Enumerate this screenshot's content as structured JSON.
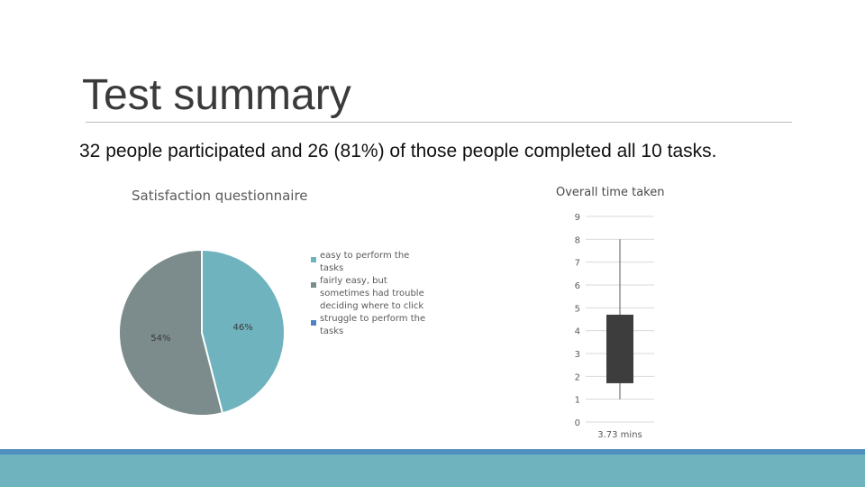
{
  "slide": {
    "title": "Test summary",
    "summary": "32 people participated and 26 (81%) of those people completed all 10 tasks."
  },
  "colors": {
    "easy": "#6fb3bf",
    "fairly_easy": "#7c8b8c",
    "struggle": "#4f84c4",
    "box": "#3d3d3d",
    "footer_band": "#6fb3bf",
    "footer_line": "#4f8fbf"
  },
  "chart_data": [
    {
      "type": "pie",
      "title": "Satisfaction questionnaire",
      "categories": [
        "easy to perform the tasks",
        "fairly easy, but sometimes had trouble deciding where to click",
        "struggle to perform the tasks"
      ],
      "values": [
        46,
        54,
        0
      ],
      "labels": [
        "46%",
        "54%",
        ""
      ],
      "legend_position": "right"
    },
    {
      "type": "box",
      "title": "Overall time taken",
      "categories": [
        "3.73 mins"
      ],
      "ylim": [
        0,
        9
      ],
      "yticks": [
        "0",
        "1",
        "2",
        "3",
        "4",
        "5",
        "6",
        "7",
        "8",
        "9"
      ],
      "grid": true,
      "whisker_low": 1,
      "q1": 1.7,
      "q3": 4.7,
      "whisker_high": 8
    }
  ]
}
